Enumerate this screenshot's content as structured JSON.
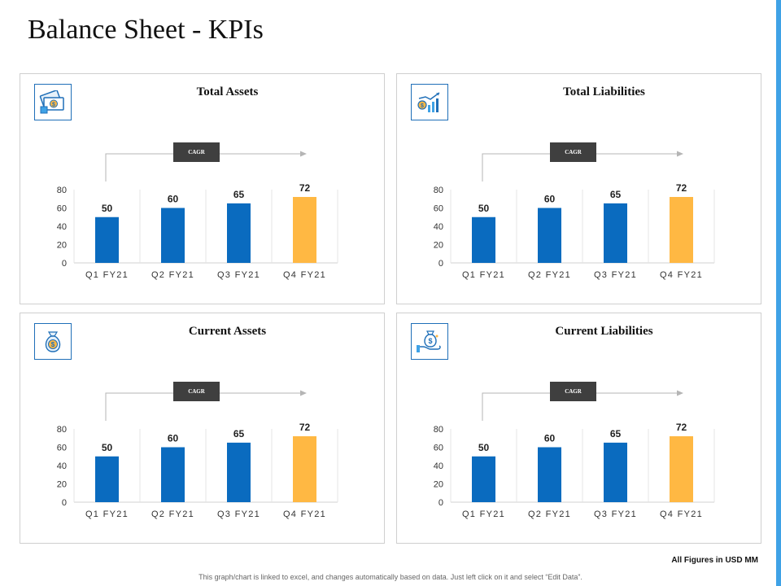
{
  "page": {
    "title": "Balance Sheet - KPIs",
    "footnote": "All Figures in USD MM",
    "disclaimer": "This graph/chart is linked to excel, and changes automatically based on data. Just left click on it and select “Edit Data”."
  },
  "colors": {
    "bar_primary": "#0a6bbf",
    "bar_highlight": "#ffb843",
    "accent": "#3fa2e6",
    "badge": "#3f3f3f"
  },
  "panels": [
    {
      "title": "Total Assets",
      "icon": "money-bills-icon",
      "badge": "CAGR"
    },
    {
      "title": "Total Liabilities",
      "icon": "growth-chart-icon",
      "badge": "CAGR"
    },
    {
      "title": "Current Assets",
      "icon": "money-bag-icon",
      "badge": "CAGR"
    },
    {
      "title": "Current Liabilities",
      "icon": "hand-money-bag-icon",
      "badge": "CAGR"
    }
  ],
  "chart_data": [
    {
      "type": "bar",
      "title": "Total Assets",
      "categories": [
        "Q1 FY21",
        "Q2 FY21",
        "Q3 FY21",
        "Q4 FY21"
      ],
      "values": [
        50,
        60,
        65,
        72
      ],
      "ylim": [
        0,
        80
      ],
      "yticks": [
        0,
        20,
        40,
        60,
        80
      ],
      "highlight_index": 3,
      "data_labels": true,
      "grid": false
    },
    {
      "type": "bar",
      "title": "Total Liabilities",
      "categories": [
        "Q1 FY21",
        "Q2 FY21",
        "Q3 FY21",
        "Q4 FY21"
      ],
      "values": [
        50,
        60,
        65,
        72
      ],
      "ylim": [
        0,
        80
      ],
      "yticks": [
        0,
        20,
        40,
        60,
        80
      ],
      "highlight_index": 3,
      "data_labels": true,
      "grid": false
    },
    {
      "type": "bar",
      "title": "Current Assets",
      "categories": [
        "Q1 FY21",
        "Q2 FY21",
        "Q3 FY21",
        "Q4 FY21"
      ],
      "values": [
        50,
        60,
        65,
        72
      ],
      "ylim": [
        0,
        80
      ],
      "yticks": [
        0,
        20,
        40,
        60,
        80
      ],
      "highlight_index": 3,
      "data_labels": true,
      "grid": false
    },
    {
      "type": "bar",
      "title": "Current Liabilities",
      "categories": [
        "Q1 FY21",
        "Q2 FY21",
        "Q3 FY21",
        "Q4 FY21"
      ],
      "values": [
        50,
        60,
        65,
        72
      ],
      "ylim": [
        0,
        80
      ],
      "yticks": [
        0,
        20,
        40,
        60,
        80
      ],
      "highlight_index": 3,
      "data_labels": true,
      "grid": false
    }
  ]
}
